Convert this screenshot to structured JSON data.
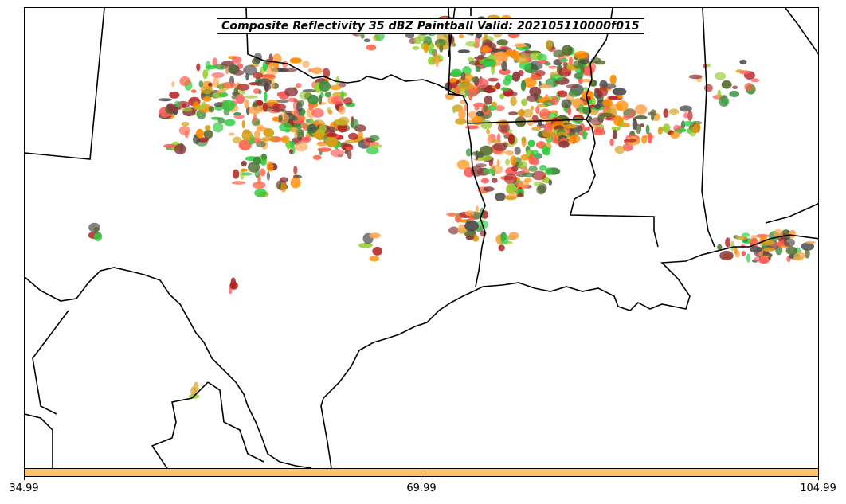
{
  "title": "Composite Reflectivity 35 dBZ Paintball Valid: 202105110000f015",
  "colorbar": {
    "color": "#ffc468",
    "ticks": [
      "34.99",
      "69.99",
      "104.99"
    ]
  },
  "paintball_colors": [
    "#ff5a5a",
    "#ff8c00",
    "#2ecc40",
    "#d4a017",
    "#8b3a3a",
    "#4a4a4a",
    "#3c8c3c",
    "#ffa54f",
    "#9acd32",
    "#b22222",
    "#556b2f",
    "#ff6347"
  ]
}
